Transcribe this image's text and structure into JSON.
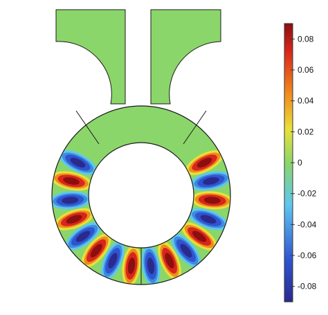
{
  "chart_data": {
    "type": "heatmap",
    "title": "",
    "xlabel": "",
    "ylabel": "",
    "colorbar": {
      "range": [
        -0.09,
        0.09
      ],
      "ticks": [
        {
          "value": 0.08,
          "label": "0.08"
        },
        {
          "value": 0.06,
          "label": "0.06"
        },
        {
          "value": 0.04,
          "label": "0.04"
        },
        {
          "value": 0.02,
          "label": "0.02"
        },
        {
          "value": 0,
          "label": "0"
        },
        {
          "value": -0.02,
          "label": "-0.02"
        },
        {
          "value": -0.04,
          "label": "-0.04"
        },
        {
          "value": -0.06,
          "label": "-0.06"
        },
        {
          "value": -0.08,
          "label": "-0.08"
        }
      ],
      "colormap": [
        "#2a2a8c",
        "#2f54d0",
        "#5fc7ee",
        "#8bd66a",
        "#e8e13a",
        "#f08a1e",
        "#d8261b",
        "#8c0f10"
      ]
    },
    "field": {
      "shape": "keyhole ring with two upward arms",
      "standing_wave_lobes": [
        -0.08,
        0.08,
        -0.08,
        0.08,
        -0.08,
        0.08,
        -0.08,
        0.08,
        -0.08,
        0.08,
        -0.08,
        0.08,
        -0.08,
        0.08,
        -0.08,
        0.08
      ],
      "arm_value": 0.0
    }
  }
}
